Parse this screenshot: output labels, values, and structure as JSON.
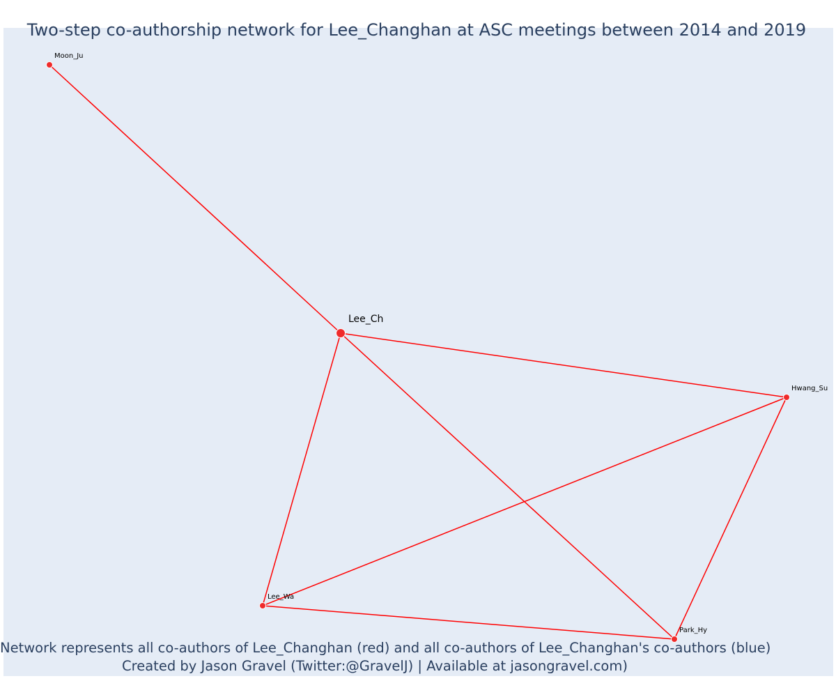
{
  "title": "Two-step co-authorship network for Lee_Changhan at ASC meetings between 2014 and 2019",
  "caption": {
    "line1": "Network represents all co-authors of Lee_Changhan (red) and all co-authors of Lee_Changhan's co-authors (blue)",
    "line2": "Created by Jason Gravel (Twitter:@GravelJ) | Available at jasongravel.com)"
  },
  "colors": {
    "background": "#e5ecf6",
    "edge": "#ff0000",
    "node": "#ef2b2b",
    "node_outline": "#ffffff",
    "text": "#2a3f5f"
  },
  "nodes": [
    {
      "id": "lee_ch",
      "label": "Lee_Ch",
      "focal": true
    },
    {
      "id": "moon_ju",
      "label": "Moon_Ju",
      "focal": false
    },
    {
      "id": "hwang_su",
      "label": "Hwang_Su",
      "focal": false
    },
    {
      "id": "lee_wa",
      "label": "Lee_Wa",
      "focal": false
    },
    {
      "id": "park_hy",
      "label": "Park_Hy",
      "focal": false
    }
  ],
  "edges": [
    {
      "source": "lee_ch",
      "target": "moon_ju"
    },
    {
      "source": "lee_ch",
      "target": "hwang_su"
    },
    {
      "source": "lee_ch",
      "target": "lee_wa"
    },
    {
      "source": "lee_ch",
      "target": "park_hy"
    },
    {
      "source": "hwang_su",
      "target": "lee_wa"
    },
    {
      "source": "hwang_su",
      "target": "park_hy"
    },
    {
      "source": "lee_wa",
      "target": "park_hy"
    }
  ]
}
